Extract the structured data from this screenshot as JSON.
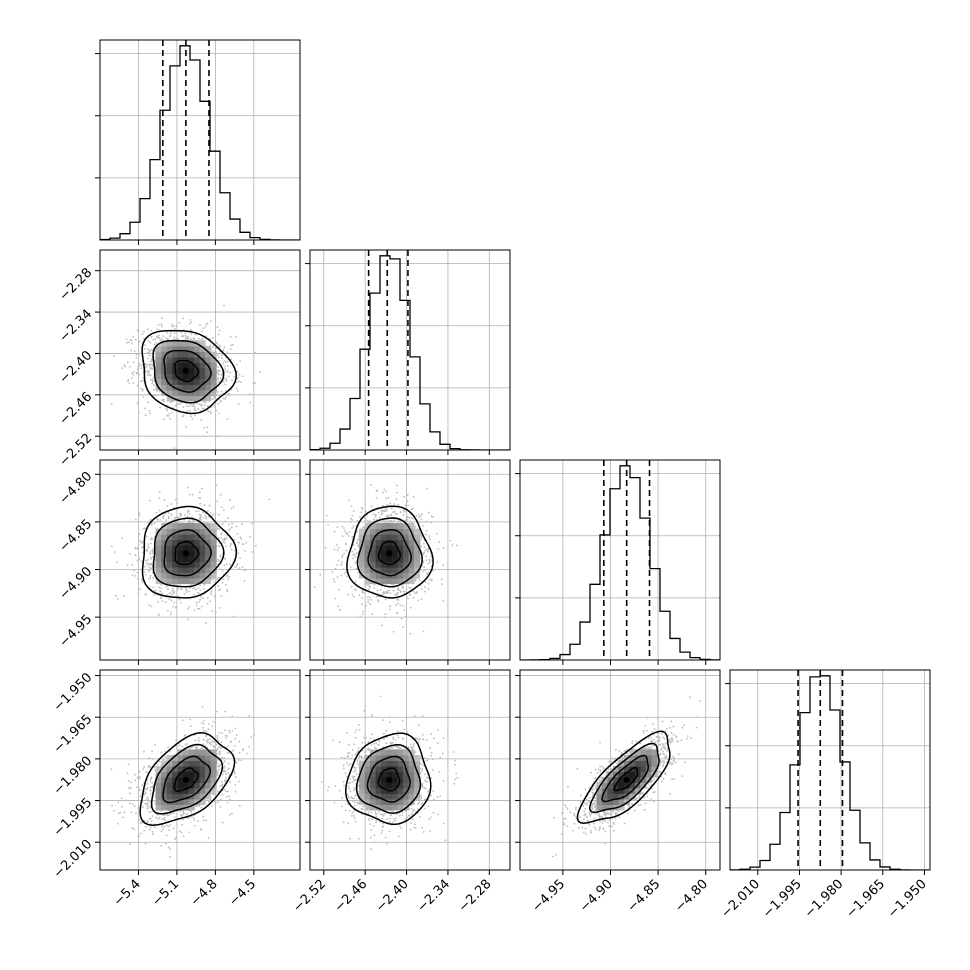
{
  "chart_data": {
    "type": "corner",
    "grid": true,
    "quantile_lines": "dashed",
    "params": [
      {
        "index": 0,
        "range": [
          -5.7,
          -4.14
        ],
        "mean": -5.03,
        "sd": 0.18,
        "quantiles": [
          -5.21,
          -5.03,
          -4.85
        ],
        "x_ticks": [
          -5.4,
          -5.1,
          -4.8,
          -4.5
        ],
        "x_tick_labels": [
          "−5.4",
          "−5.1",
          "−4.8",
          "−4.5"
        ],
        "y_ticks": [],
        "y_tick_labels": []
      },
      {
        "index": 1,
        "range": [
          -2.54,
          -2.25
        ],
        "mean": -2.425,
        "sd": 0.03,
        "quantiles": [
          -2.455,
          -2.428,
          -2.398
        ],
        "x_ticks": [
          -2.52,
          -2.46,
          -2.4,
          -2.34,
          -2.28
        ],
        "x_tick_labels": [
          "−2.52",
          "−2.46",
          "−2.40",
          "−2.34",
          "−2.28"
        ],
        "y_ticks": [
          -2.28,
          -2.34,
          -2.4,
          -2.46,
          -2.52
        ],
        "y_tick_labels": [
          "−2.28",
          "−2.34",
          "−2.40",
          "−2.46",
          "−2.52"
        ]
      },
      {
        "index": 2,
        "range": [
          -4.995,
          -4.785
        ],
        "mean": -4.883,
        "sd": 0.024,
        "quantiles": [
          -4.907,
          -4.883,
          -4.859
        ],
        "x_ticks": [
          -4.95,
          -4.9,
          -4.85,
          -4.8
        ],
        "x_tick_labels": [
          "−4.95",
          "−4.90",
          "−4.85",
          "−4.80"
        ],
        "y_ticks": [
          -4.8,
          -4.85,
          -4.9,
          -4.95
        ],
        "y_tick_labels": [
          "−4.80",
          "−4.85",
          "−4.90",
          "−4.95"
        ]
      },
      {
        "index": 3,
        "range": [
          -2.02,
          -1.948
        ],
        "mean": -1.9875,
        "sd": 0.008,
        "quantiles": [
          -1.9955,
          -1.9875,
          -1.9795
        ],
        "x_ticks": [
          -2.01,
          -1.995,
          -1.98,
          -1.965,
          -1.95
        ],
        "x_tick_labels": [
          "−2.010",
          "−1.995",
          "−1.980",
          "−1.965",
          "−1.950"
        ],
        "y_ticks": [
          -1.95,
          -1.965,
          -1.98,
          -1.995,
          -2.01
        ],
        "y_tick_labels": [
          "−1.950",
          "−1.965",
          "−1.980",
          "−1.995",
          "−2.010"
        ]
      }
    ],
    "correlations": [
      {
        "i": 1,
        "j": 0,
        "rho": -0.15
      },
      {
        "i": 2,
        "j": 0,
        "rho": 0.05
      },
      {
        "i": 2,
        "j": 1,
        "rho": 0.0
      },
      {
        "i": 3,
        "j": 0,
        "rho": 0.45
      },
      {
        "i": 3,
        "j": 1,
        "rho": 0.05
      },
      {
        "i": 3,
        "j": 2,
        "rho": 0.75
      }
    ]
  }
}
